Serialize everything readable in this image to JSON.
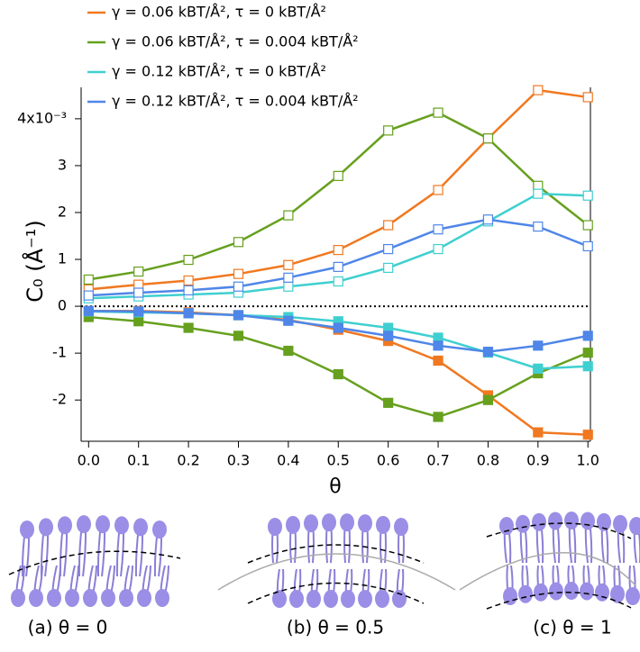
{
  "chart_data": {
    "type": "line",
    "y_label": "C₀ (Å⁻¹)",
    "x_label": "θ",
    "x": [
      0.0,
      0.1,
      0.2,
      0.3,
      0.4,
      0.5,
      0.6,
      0.7,
      0.8,
      0.9,
      1.0
    ],
    "xlim": [
      -0.015,
      1.005
    ],
    "xticks": [
      {
        "value": 0,
        "label": "0.0"
      },
      0.1,
      0.2,
      0.3,
      0.4,
      0.5,
      0.6,
      0.7,
      0.8,
      0.9,
      {
        "value": 1,
        "label": "1.0"
      }
    ],
    "ylim": [
      -2.88,
      4.67
    ],
    "yticks": [
      -2,
      -1,
      0,
      1,
      2,
      3,
      {
        "value": 4,
        "label": "4x10⁻³"
      }
    ],
    "series": [
      {
        "name": "γ = 0.06 kBT/Å², τ =  0 kBT/Å²",
        "color": "#f07820",
        "open": [
          0.36,
          0.46,
          0.55,
          0.69,
          0.88,
          1.2,
          1.73,
          2.48,
          3.58,
          4.61,
          4.46
        ],
        "filled": [
          -0.1,
          -0.1,
          -0.13,
          -0.19,
          -0.29,
          -0.5,
          -0.74,
          -1.16,
          -1.9,
          -2.69,
          -2.74
        ]
      },
      {
        "name": "γ = 0.06 kBT/Å², τ = 0.004 kBT/Å²",
        "color": "#66a01e",
        "open": [
          0.57,
          0.74,
          0.99,
          1.37,
          1.94,
          2.78,
          3.75,
          4.13,
          3.58,
          2.57,
          1.73
        ],
        "filled": [
          -0.23,
          -0.32,
          -0.46,
          -0.63,
          -0.95,
          -1.45,
          -2.06,
          -2.36,
          -2.0,
          -1.43,
          -0.99
        ]
      },
      {
        "name": "γ = 0.12 kBT/Å², τ = 0 kBT/Å²",
        "color": "#40cfd0",
        "open": [
          0.17,
          0.21,
          0.25,
          0.29,
          0.42,
          0.53,
          0.82,
          1.22,
          1.81,
          2.4,
          2.36
        ],
        "filled": [
          -0.11,
          -0.13,
          -0.15,
          -0.19,
          -0.23,
          -0.32,
          -0.46,
          -0.67,
          -0.99,
          -1.33,
          -1.28
        ]
      },
      {
        "name": "γ = 0.12 kBT/Å², τ = 0.004 kBT/Å²",
        "color": "#4f86e8",
        "open": [
          0.23,
          0.29,
          0.34,
          0.42,
          0.61,
          0.84,
          1.22,
          1.64,
          1.85,
          1.7,
          1.28
        ],
        "filled": [
          -0.1,
          -0.11,
          -0.15,
          -0.19,
          -0.31,
          -0.46,
          -0.63,
          -0.84,
          -0.97,
          -0.84,
          -0.63
        ]
      }
    ],
    "panels": [
      "(a) θ = 0",
      "(b) θ = 0.5",
      "(c) θ = 1"
    ]
  }
}
